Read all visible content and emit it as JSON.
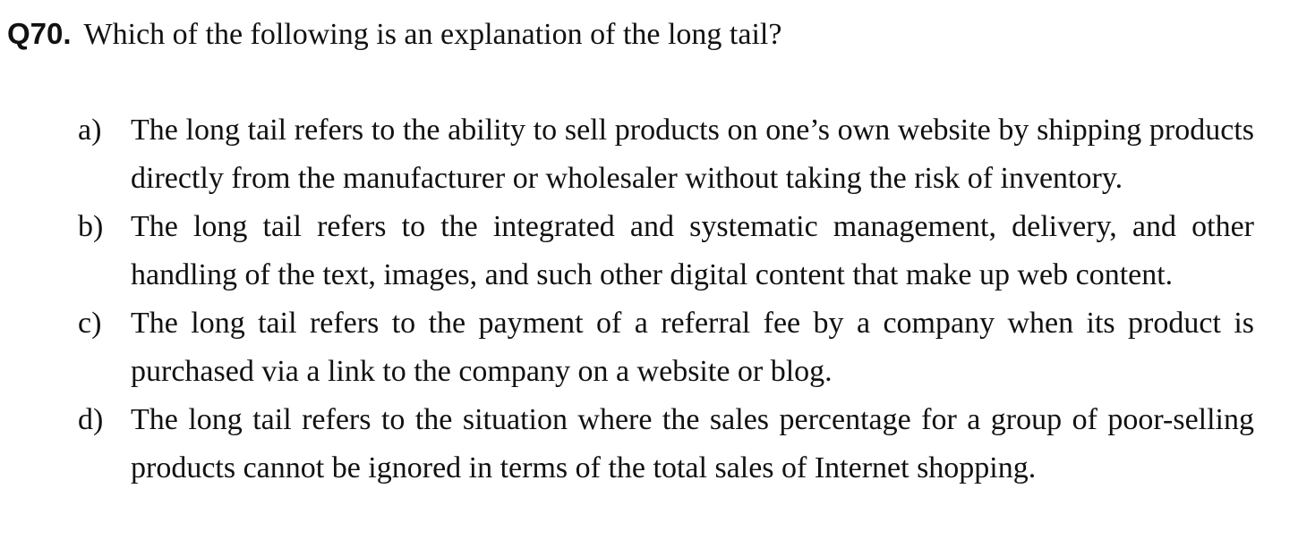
{
  "question": {
    "number": "Q70.",
    "text": "Which of the following is an explanation of the long tail?"
  },
  "options": [
    {
      "letter": "a)",
      "text": "The long tail refers to the ability to sell products on one’s own website by shipping products directly from the manufacturer or wholesaler without taking the risk of inventory."
    },
    {
      "letter": "b)",
      "text": "The long tail refers to the integrated and systematic management, delivery, and other handling of the text, images, and such other digital content that make up web content."
    },
    {
      "letter": "c)",
      "text": "The long tail refers to the payment of a referral fee by a company when its product is purchased via a link to the company on a website or blog."
    },
    {
      "letter": "d)",
      "text": "The long tail refers to the situation where the sales percentage for a group of poor-selling products cannot be ignored in terms of the total sales of Internet shopping."
    }
  ]
}
